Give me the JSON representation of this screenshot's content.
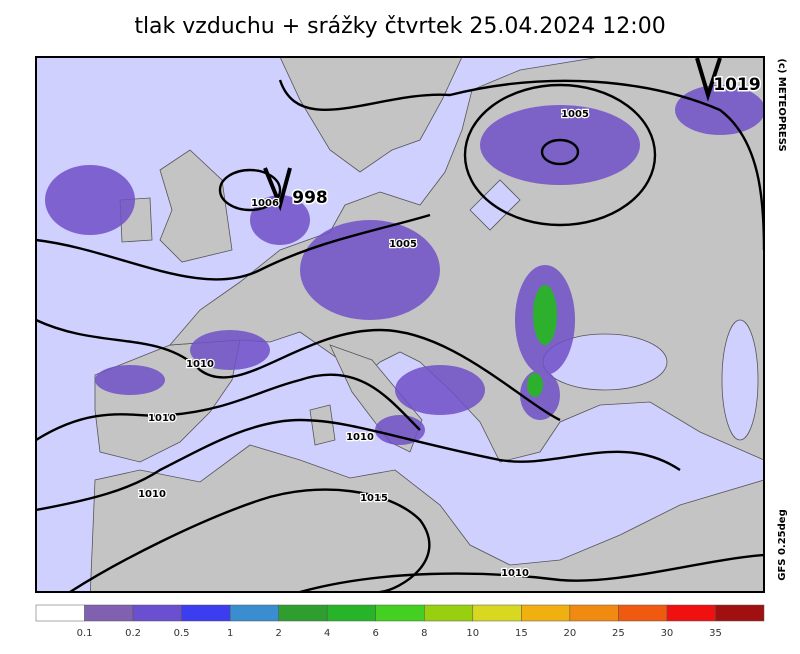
{
  "title": "tlak vzduchu + srážky čtvrtek 25.04.2024 12:00",
  "copyright": "(c) METEOPRESS",
  "model": "GFS 0.25deg",
  "pressure_centers": [
    {
      "mark": "V",
      "value": "998"
    },
    {
      "mark": "V",
      "value": "1019"
    }
  ],
  "isobar_labels": [
    "1006",
    "1005",
    "1005",
    "1010",
    "1010",
    "1010",
    "1010",
    "1015",
    "1010"
  ],
  "legend": {
    "colors": [
      "#ffffff",
      "#8060b0",
      "#6a4fd0",
      "#3c3cf0",
      "#3a8ed0",
      "#2e9e2e",
      "#28b428",
      "#44d020",
      "#98d010",
      "#d8d820",
      "#f0b010",
      "#f08a10",
      "#f05a10",
      "#f01010",
      "#a01010"
    ],
    "ticks": [
      0.1,
      0.2,
      0.5,
      1,
      2,
      4,
      6,
      8,
      10,
      15,
      20,
      25,
      30,
      35
    ]
  }
}
